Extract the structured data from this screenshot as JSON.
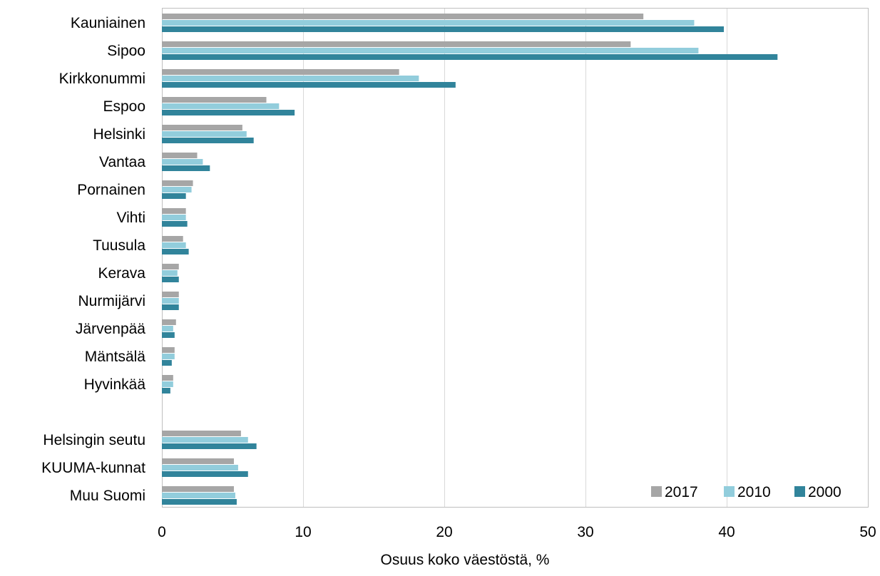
{
  "chart_data": {
    "type": "bar",
    "orientation": "horizontal",
    "title": "",
    "xlabel": "Osuus koko väestöstä, %",
    "ylabel": "",
    "xlim": [
      0,
      50
    ],
    "x_ticks": [
      "0",
      "10",
      "20",
      "30",
      "40",
      "50"
    ],
    "grid": "vertical",
    "legend_position": "bottom-right",
    "categories": [
      "Kauniainen",
      "Sipoo",
      "Kirkkonummi",
      "Espoo",
      "Helsinki",
      "Vantaa",
      "Pornainen",
      "Vihti",
      "Tuusula",
      "Kerava",
      "Nurmijärvi",
      "Järvenpää",
      "Mäntsälä",
      "Hyvinkää",
      "",
      "Helsingin seutu",
      "KUUMA-kunnat",
      "Muu Suomi"
    ],
    "series": [
      {
        "name": "2017",
        "color": "#a6a6a6",
        "values": [
          34.1,
          33.2,
          16.8,
          7.4,
          5.7,
          2.5,
          2.2,
          1.7,
          1.5,
          1.2,
          1.2,
          1.0,
          0.9,
          0.8,
          null,
          5.6,
          5.1,
          5.1
        ]
      },
      {
        "name": "2010",
        "color": "#92cddc",
        "values": [
          37.7,
          38.0,
          18.2,
          8.3,
          6.0,
          2.9,
          2.1,
          1.7,
          1.7,
          1.1,
          1.2,
          0.8,
          0.9,
          0.8,
          null,
          6.1,
          5.4,
          5.2
        ]
      },
      {
        "name": "2000",
        "color": "#31849b",
        "values": [
          39.8,
          43.6,
          20.8,
          9.4,
          6.5,
          3.4,
          1.7,
          1.8,
          1.9,
          1.2,
          1.2,
          0.9,
          0.7,
          0.6,
          null,
          6.7,
          6.1,
          5.3
        ]
      }
    ]
  }
}
